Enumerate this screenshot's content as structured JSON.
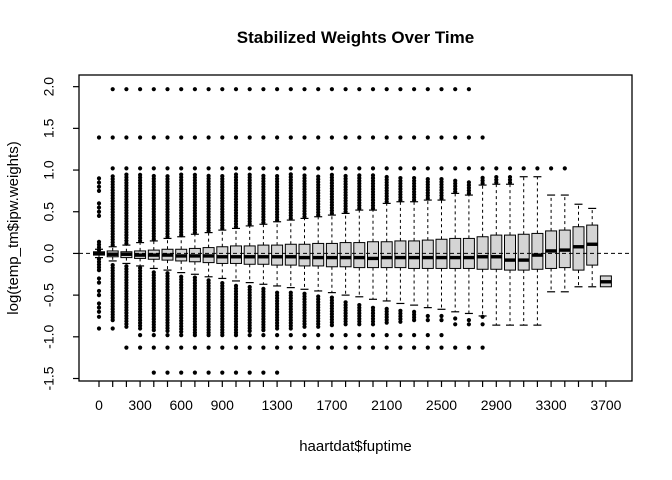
{
  "figure": {
    "background": "#ffffff"
  },
  "chart_data": {
    "type": "boxplot",
    "title": "Stabilized Weights Over Time",
    "xlabel": "haartdat$fuptime",
    "ylabel": "log(temp_tm$ipw.weights)",
    "ylim": [
      -1.53,
      2.14
    ],
    "zero_reference_line": 0.0,
    "grid": false,
    "style": {
      "box_fill": "#d4d4d4",
      "line_color": "#000000",
      "background": "#ffffff"
    },
    "y_ticks": [
      {
        "v": -1.5,
        "label": "-1.5"
      },
      {
        "v": -1.0,
        "label": "-1.0"
      },
      {
        "v": -0.5,
        "label": "-0.5"
      },
      {
        "v": 0.0,
        "label": "0.0"
      },
      {
        "v": 0.5,
        "label": "0.5"
      },
      {
        "v": 1.0,
        "label": "1.0"
      },
      {
        "v": 1.5,
        "label": "1.5"
      },
      {
        "v": 2.0,
        "label": "2.0"
      }
    ],
    "x_tick_labels": [
      {
        "index": 0,
        "text": "0"
      },
      {
        "index": 3,
        "text": "300"
      },
      {
        "index": 6,
        "text": "600"
      },
      {
        "index": 9,
        "text": "900"
      },
      {
        "index": 13,
        "text": "1300"
      },
      {
        "index": 17,
        "text": "1700"
      },
      {
        "index": 21,
        "text": "2100"
      },
      {
        "index": 25,
        "text": "2500"
      },
      {
        "index": 29,
        "text": "2900"
      },
      {
        "index": 33,
        "text": "3300"
      },
      {
        "index": 37,
        "text": "3700"
      }
    ],
    "groups": [
      {
        "t": 0,
        "q1": -0.02,
        "q3": 0.02,
        "med": 0.0,
        "wlo": -0.05,
        "whi": 0.05,
        "ud": [
          0.04,
          0.16
        ],
        "us": [
          0.45,
          0.5,
          0.55,
          0.6,
          0.75,
          0.8,
          0.85,
          0.9,
          1.39
        ],
        "ld": [
          -0.2,
          -0.04
        ],
        "ls": [
          -0.3,
          -0.35,
          -0.45,
          -0.5,
          -0.6,
          -0.65,
          -0.7,
          -0.76,
          -0.9
        ]
      },
      {
        "t": 100,
        "q1": -0.04,
        "q3": 0.03,
        "med": -0.01,
        "wlo": -0.09,
        "whi": 0.08,
        "ud": [
          0.1,
          0.95
        ],
        "us": [
          1.02,
          1.39,
          1.97
        ],
        "ld": [
          -0.8,
          -0.11
        ],
        "ls": [
          -0.9
        ]
      },
      {
        "t": 200,
        "q1": -0.05,
        "q3": 0.02,
        "med": -0.01,
        "wlo": -0.12,
        "whi": 0.1,
        "ud": [
          0.12,
          0.95
        ],
        "us": [
          1.02,
          1.39,
          1.97
        ],
        "ld": [
          -0.88,
          -0.14
        ],
        "ls": [
          -1.13
        ]
      },
      {
        "t": 300,
        "q1": -0.06,
        "q3": 0.03,
        "med": -0.02,
        "wlo": -0.15,
        "whi": 0.13,
        "ud": [
          0.15,
          0.95
        ],
        "us": [
          1.02,
          1.39,
          1.97
        ],
        "ld": [
          -0.9,
          -0.17
        ],
        "ls": [
          -0.98,
          -1.13
        ]
      },
      {
        "t": 400,
        "q1": -0.07,
        "q3": 0.04,
        "med": -0.02,
        "wlo": -0.18,
        "whi": 0.15,
        "ud": [
          0.17,
          0.95
        ],
        "us": [
          1.02,
          1.39,
          1.97
        ],
        "ld": [
          -0.92,
          -0.2
        ],
        "ls": [
          -0.98,
          -1.13,
          -1.43
        ]
      },
      {
        "t": 500,
        "q1": -0.08,
        "q3": 0.05,
        "med": -0.02,
        "wlo": -0.2,
        "whi": 0.18,
        "ud": [
          0.2,
          0.95
        ],
        "us": [
          1.02,
          1.39,
          1.97
        ],
        "ld": [
          -0.93,
          -0.22
        ],
        "ls": [
          -0.98,
          -1.13,
          -1.43
        ]
      },
      {
        "t": 600,
        "q1": -0.09,
        "q3": 0.05,
        "med": -0.03,
        "wlo": -0.23,
        "whi": 0.2,
        "ud": [
          0.22,
          0.95
        ],
        "us": [
          1.02,
          1.39,
          1.97
        ],
        "ld": [
          -0.94,
          -0.25
        ],
        "ls": [
          -0.98,
          -1.13,
          -1.43
        ]
      },
      {
        "t": 700,
        "q1": -0.1,
        "q3": 0.06,
        "med": -0.03,
        "wlo": -0.25,
        "whi": 0.23,
        "ud": [
          0.25,
          0.95
        ],
        "us": [
          1.02,
          1.39,
          1.97
        ],
        "ld": [
          -0.95,
          -0.28
        ],
        "ls": [
          -0.98,
          -1.13,
          -1.43
        ]
      },
      {
        "t": 800,
        "q1": -0.11,
        "q3": 0.07,
        "med": -0.03,
        "wlo": -0.28,
        "whi": 0.25,
        "ud": [
          0.27,
          0.95
        ],
        "us": [
          1.02,
          1.39,
          1.97
        ],
        "ld": [
          -0.95,
          -0.3
        ],
        "ls": [
          -0.98,
          -1.13,
          -1.43
        ]
      },
      {
        "t": 900,
        "q1": -0.12,
        "q3": 0.08,
        "med": -0.04,
        "wlo": -0.3,
        "whi": 0.28,
        "ud": [
          0.3,
          0.95
        ],
        "us": [
          1.02,
          1.39,
          1.97
        ],
        "ld": [
          -0.95,
          -0.33
        ],
        "ls": [
          -0.98,
          -1.13,
          -1.43
        ]
      },
      {
        "t": 1000,
        "q1": -0.12,
        "q3": 0.09,
        "med": -0.04,
        "wlo": -0.33,
        "whi": 0.3,
        "ud": [
          0.32,
          0.95
        ],
        "us": [
          1.02,
          1.39,
          1.97
        ],
        "ld": [
          -0.95,
          -0.36
        ],
        "ls": [
          -0.98,
          -1.13,
          -1.43
        ]
      },
      {
        "t": 1100,
        "q1": -0.13,
        "q3": 0.09,
        "med": -0.04,
        "wlo": -0.35,
        "whi": 0.33,
        "ud": [
          0.35,
          0.95
        ],
        "us": [
          1.02,
          1.39,
          1.97
        ],
        "ld": [
          -0.93,
          -0.38
        ],
        "ls": [
          -0.98,
          -1.13,
          -1.43
        ]
      },
      {
        "t": 1200,
        "q1": -0.13,
        "q3": 0.1,
        "med": -0.04,
        "wlo": -0.37,
        "whi": 0.35,
        "ud": [
          0.37,
          0.95
        ],
        "us": [
          1.02,
          1.39,
          1.97
        ],
        "ld": [
          -0.92,
          -0.41
        ],
        "ls": [
          -0.98,
          -1.13,
          -1.43
        ]
      },
      {
        "t": 1300,
        "q1": -0.14,
        "q3": 0.1,
        "med": -0.04,
        "wlo": -0.39,
        "whi": 0.38,
        "ud": [
          0.4,
          0.95
        ],
        "us": [
          1.02,
          1.39,
          1.97
        ],
        "ld": [
          -0.9,
          -0.44
        ],
        "ls": [
          -0.98,
          -1.13,
          -1.43
        ]
      },
      {
        "t": 1400,
        "q1": -0.14,
        "q3": 0.11,
        "med": -0.04,
        "wlo": -0.41,
        "whi": 0.4,
        "ud": [
          0.42,
          0.95
        ],
        "us": [
          1.02,
          1.39,
          1.97
        ],
        "ld": [
          -0.9,
          -0.46
        ],
        "ls": [
          -0.98,
          -1.13
        ]
      },
      {
        "t": 1500,
        "q1": -0.15,
        "q3": 0.11,
        "med": -0.05,
        "wlo": -0.43,
        "whi": 0.42,
        "ud": [
          0.44,
          0.95
        ],
        "us": [
          1.02,
          1.39,
          1.97
        ],
        "ld": [
          -0.88,
          -0.48
        ],
        "ls": [
          -0.98,
          -1.13
        ]
      },
      {
        "t": 1600,
        "q1": -0.15,
        "q3": 0.12,
        "med": -0.05,
        "wlo": -0.45,
        "whi": 0.44,
        "ud": [
          0.46,
          0.95
        ],
        "us": [
          1.02,
          1.39,
          1.97
        ],
        "ld": [
          -0.88,
          -0.5
        ],
        "ls": [
          -0.98,
          -1.13
        ]
      },
      {
        "t": 1700,
        "q1": -0.16,
        "q3": 0.12,
        "med": -0.05,
        "wlo": -0.47,
        "whi": 0.46,
        "ud": [
          0.48,
          0.95
        ],
        "us": [
          1.02,
          1.39,
          1.97
        ],
        "ld": [
          -0.86,
          -0.52
        ],
        "ls": [
          -0.98,
          -1.13
        ]
      },
      {
        "t": 1800,
        "q1": -0.16,
        "q3": 0.13,
        "med": -0.05,
        "wlo": -0.5,
        "whi": 0.48,
        "ud": [
          0.5,
          0.95
        ],
        "us": [
          1.02,
          1.39,
          1.97
        ],
        "ld": [
          -0.85,
          -0.58
        ],
        "ls": [
          -0.98,
          -1.13
        ]
      },
      {
        "t": 1900,
        "q1": -0.17,
        "q3": 0.13,
        "med": -0.05,
        "wlo": -0.52,
        "whi": 0.52,
        "ud": [
          0.54,
          0.94
        ],
        "us": [
          1.02,
          1.39,
          1.97
        ],
        "ld": [
          -0.85,
          -0.6
        ],
        "ls": [
          -0.98,
          -1.13
        ]
      },
      {
        "t": 2000,
        "q1": -0.17,
        "q3": 0.14,
        "med": -0.06,
        "wlo": -0.55,
        "whi": 0.52,
        "ud": [
          0.54,
          0.94
        ],
        "us": [
          1.02,
          1.39,
          1.97
        ],
        "ld": [
          -0.85,
          -0.62
        ],
        "ls": [
          -0.98,
          -1.13
        ]
      },
      {
        "t": 2100,
        "q1": -0.17,
        "q3": 0.14,
        "med": -0.05,
        "wlo": -0.57,
        "whi": 0.6,
        "ud": [
          0.62,
          0.93
        ],
        "us": [
          1.02,
          1.39,
          1.97
        ],
        "ld": [
          -0.83,
          -0.65
        ],
        "ls": [
          -0.98,
          -1.13
        ]
      },
      {
        "t": 2200,
        "q1": -0.17,
        "q3": 0.15,
        "med": -0.05,
        "wlo": -0.6,
        "whi": 0.62,
        "ud": [
          0.64,
          0.93
        ],
        "us": [
          1.02,
          1.39,
          1.97
        ],
        "ld": [
          -0.82,
          -0.67
        ],
        "ls": [
          -0.98,
          -1.13
        ]
      },
      {
        "t": 2300,
        "q1": -0.18,
        "q3": 0.15,
        "med": -0.05,
        "wlo": -0.62,
        "whi": 0.62,
        "ud": [
          0.64,
          0.92
        ],
        "us": [
          1.02,
          1.39,
          1.97
        ],
        "ld": [
          -0.8,
          -0.7
        ],
        "ls": [
          -0.98,
          -1.13
        ]
      },
      {
        "t": 2400,
        "q1": -0.18,
        "q3": 0.16,
        "med": -0.05,
        "wlo": -0.65,
        "whi": 0.64,
        "ud": [
          0.66,
          0.9
        ],
        "us": [
          1.02,
          1.39,
          1.97
        ],
        "ld": null,
        "ls": [
          -0.75,
          -0.8,
          -0.98,
          -1.13
        ]
      },
      {
        "t": 2500,
        "q1": -0.18,
        "q3": 0.17,
        "med": -0.05,
        "wlo": -0.67,
        "whi": 0.64,
        "ud": [
          0.66,
          0.9
        ],
        "us": [
          1.02,
          1.39,
          1.97
        ],
        "ld": null,
        "ls": [
          -0.75,
          -0.8,
          -0.98,
          -1.13
        ]
      },
      {
        "t": 2600,
        "q1": -0.18,
        "q3": 0.18,
        "med": -0.05,
        "wlo": -0.7,
        "whi": 0.72,
        "ud": [
          0.74,
          0.9
        ],
        "us": [
          1.02,
          1.39,
          1.97
        ],
        "ld": null,
        "ls": [
          -0.78,
          -0.85,
          -1.13
        ]
      },
      {
        "t": 2700,
        "q1": -0.18,
        "q3": 0.18,
        "med": -0.05,
        "wlo": -0.72,
        "whi": 0.7,
        "ud": [
          0.72,
          0.88
        ],
        "us": [
          1.02,
          1.39,
          1.97
        ],
        "ld": null,
        "ls": [
          -0.8,
          -0.85,
          -1.13
        ]
      },
      {
        "t": 2800,
        "q1": -0.19,
        "q3": 0.2,
        "med": -0.04,
        "wlo": -0.75,
        "whi": 0.82,
        "ud": [
          0.84,
          0.92
        ],
        "us": [
          1.02,
          1.39
        ],
        "ld": null,
        "ls": [
          -0.76,
          -0.85,
          -1.13
        ]
      },
      {
        "t": 2900,
        "q1": -0.19,
        "q3": 0.22,
        "med": -0.04,
        "wlo": -0.86,
        "whi": 0.83,
        "ud": [
          0.85,
          0.92
        ],
        "us": [
          1.02
        ],
        "ld": null,
        "ls": []
      },
      {
        "t": 3000,
        "q1": -0.2,
        "q3": 0.22,
        "med": -0.08,
        "wlo": -0.86,
        "whi": 0.83,
        "ud": [
          0.85,
          0.92
        ],
        "us": [
          1.02
        ],
        "ld": null,
        "ls": []
      },
      {
        "t": 3100,
        "q1": -0.2,
        "q3": 0.23,
        "med": -0.08,
        "wlo": -0.86,
        "whi": 0.92,
        "ud": null,
        "us": [
          1.02
        ],
        "ld": null,
        "ls": []
      },
      {
        "t": 3200,
        "q1": -0.19,
        "q3": 0.24,
        "med": -0.02,
        "wlo": -0.86,
        "whi": 0.92,
        "ud": null,
        "us": [
          1.02
        ],
        "ld": null,
        "ls": []
      },
      {
        "t": 3300,
        "q1": -0.18,
        "q3": 0.27,
        "med": 0.03,
        "wlo": -0.46,
        "whi": 0.7,
        "ud": null,
        "us": [
          1.02
        ],
        "ld": null,
        "ls": []
      },
      {
        "t": 3400,
        "q1": -0.17,
        "q3": 0.28,
        "med": 0.04,
        "wlo": -0.46,
        "whi": 0.7,
        "ud": null,
        "us": [
          1.02
        ],
        "ld": null,
        "ls": []
      },
      {
        "t": 3500,
        "q1": -0.2,
        "q3": 0.32,
        "med": 0.08,
        "wlo": -0.4,
        "whi": 0.59,
        "ud": null,
        "us": [],
        "ld": null,
        "ls": []
      },
      {
        "t": 3600,
        "q1": -0.14,
        "q3": 0.34,
        "med": 0.11,
        "wlo": -0.4,
        "whi": 0.54,
        "ud": null,
        "us": [],
        "ld": null,
        "ls": []
      },
      {
        "t": 3700,
        "q1": -0.4,
        "q3": -0.27,
        "med": -0.34,
        "wlo": -0.4,
        "whi": -0.27,
        "ud": null,
        "us": [],
        "ld": null,
        "ls": []
      }
    ]
  }
}
